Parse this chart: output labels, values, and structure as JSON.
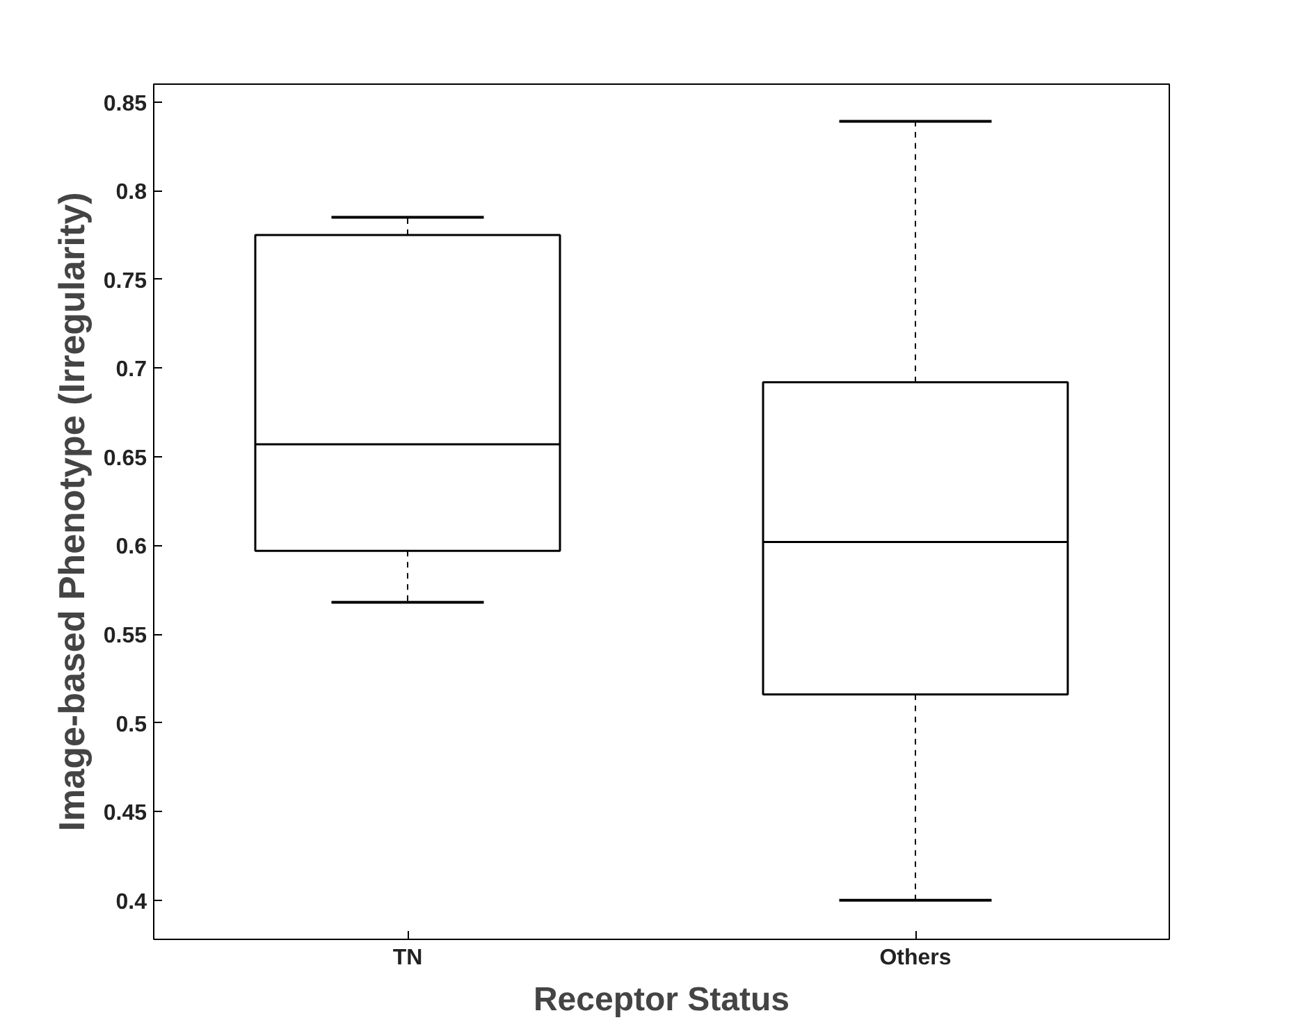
{
  "chart_data": {
    "type": "box",
    "xlabel": "Receptor Status",
    "ylabel": "Image-based Phenotype (Irregularity)",
    "categories": [
      "TN",
      "Others"
    ],
    "boxes": [
      {
        "low": 0.568,
        "q1": 0.597,
        "median": 0.657,
        "q3": 0.775,
        "high": 0.785
      },
      {
        "low": 0.4,
        "q1": 0.516,
        "median": 0.602,
        "q3": 0.692,
        "high": 0.839
      }
    ],
    "ylim": [
      0.378,
      0.86
    ],
    "yticks": [
      0.4,
      0.45,
      0.5,
      0.55,
      0.6,
      0.65,
      0.7,
      0.75,
      0.8,
      0.85
    ],
    "grid": false
  }
}
